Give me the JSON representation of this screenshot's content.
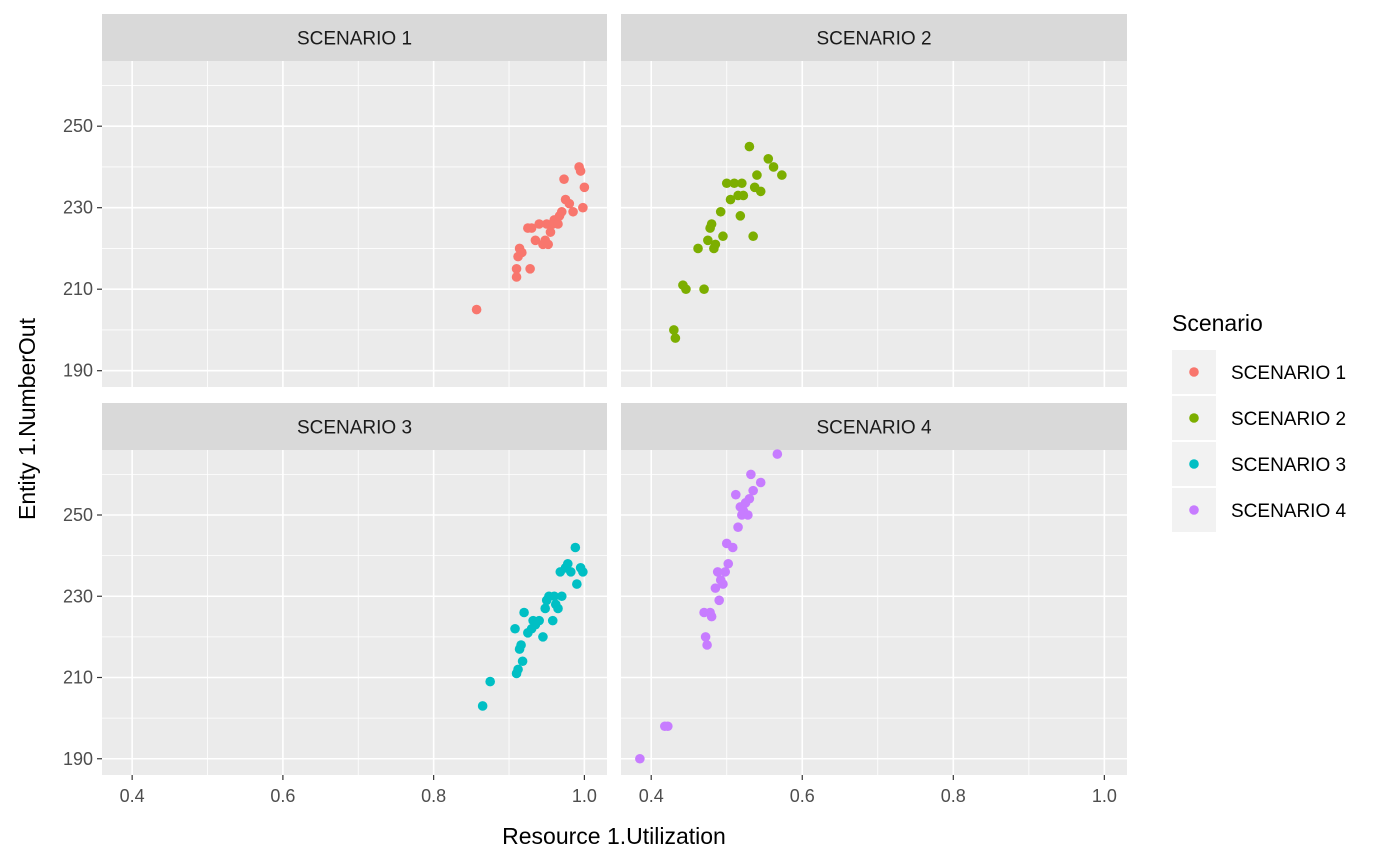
{
  "chart_data": {
    "type": "scatter",
    "facet": "wrap",
    "xlabel": "Resource 1.Utilization",
    "ylabel": "Entity 1.NumberOut",
    "xlim": [
      0.36,
      1.03
    ],
    "ylim": [
      186,
      266
    ],
    "x_ticks": [
      0.4,
      0.6,
      0.8,
      1.0
    ],
    "x_tick_labels": [
      "0.4",
      "0.6",
      "0.8",
      "1.0"
    ],
    "y_ticks": [
      190,
      210,
      230,
      250
    ],
    "y_tick_labels": [
      "190",
      "210",
      "230",
      "250"
    ],
    "grid": true,
    "legend": {
      "title": "Scenario",
      "position": "right",
      "entries": [
        "SCENARIO 1",
        "SCENARIO 2",
        "SCENARIO 3",
        "SCENARIO 4"
      ]
    },
    "series": [
      {
        "name": "SCENARIO 1",
        "color": "#F8766D",
        "points": [
          [
            0.857,
            205
          ],
          [
            0.91,
            213
          ],
          [
            0.91,
            215
          ],
          [
            0.912,
            218
          ],
          [
            0.914,
            220
          ],
          [
            0.917,
            219
          ],
          [
            0.925,
            225
          ],
          [
            0.928,
            215
          ],
          [
            0.93,
            225
          ],
          [
            0.935,
            222
          ],
          [
            0.94,
            226
          ],
          [
            0.945,
            221
          ],
          [
            0.948,
            222
          ],
          [
            0.95,
            226
          ],
          [
            0.952,
            221
          ],
          [
            0.955,
            224
          ],
          [
            0.958,
            226
          ],
          [
            0.96,
            227
          ],
          [
            0.965,
            226
          ],
          [
            0.967,
            228
          ],
          [
            0.97,
            229
          ],
          [
            0.973,
            237
          ],
          [
            0.975,
            232
          ],
          [
            0.98,
            231
          ],
          [
            0.985,
            229
          ],
          [
            0.993,
            240
          ],
          [
            0.995,
            239
          ],
          [
            0.998,
            230
          ],
          [
            1.0,
            235
          ]
        ]
      },
      {
        "name": "SCENARIO 2",
        "color": "#7CAE00",
        "points": [
          [
            0.43,
            200
          ],
          [
            0.432,
            198
          ],
          [
            0.442,
            211
          ],
          [
            0.446,
            210
          ],
          [
            0.462,
            220
          ],
          [
            0.47,
            210
          ],
          [
            0.475,
            222
          ],
          [
            0.478,
            225
          ],
          [
            0.48,
            226
          ],
          [
            0.483,
            220
          ],
          [
            0.485,
            221
          ],
          [
            0.492,
            229
          ],
          [
            0.495,
            223
          ],
          [
            0.5,
            236
          ],
          [
            0.505,
            232
          ],
          [
            0.51,
            236
          ],
          [
            0.515,
            233
          ],
          [
            0.518,
            228
          ],
          [
            0.52,
            236
          ],
          [
            0.522,
            233
          ],
          [
            0.53,
            245
          ],
          [
            0.535,
            223
          ],
          [
            0.537,
            235
          ],
          [
            0.54,
            238
          ],
          [
            0.545,
            234
          ],
          [
            0.555,
            242
          ],
          [
            0.562,
            240
          ],
          [
            0.573,
            238
          ]
        ]
      },
      {
        "name": "SCENARIO 3",
        "color": "#00BFC4",
        "points": [
          [
            0.865,
            203
          ],
          [
            0.875,
            209
          ],
          [
            0.908,
            222
          ],
          [
            0.91,
            211
          ],
          [
            0.912,
            212
          ],
          [
            0.914,
            217
          ],
          [
            0.916,
            218
          ],
          [
            0.918,
            214
          ],
          [
            0.92,
            226
          ],
          [
            0.925,
            221
          ],
          [
            0.93,
            222
          ],
          [
            0.932,
            224
          ],
          [
            0.935,
            223
          ],
          [
            0.94,
            224
          ],
          [
            0.945,
            220
          ],
          [
            0.948,
            227
          ],
          [
            0.95,
            229
          ],
          [
            0.953,
            230
          ],
          [
            0.958,
            224
          ],
          [
            0.96,
            230
          ],
          [
            0.962,
            228
          ],
          [
            0.965,
            227
          ],
          [
            0.968,
            236
          ],
          [
            0.97,
            230
          ],
          [
            0.975,
            237
          ],
          [
            0.978,
            238
          ],
          [
            0.982,
            236
          ],
          [
            0.988,
            242
          ],
          [
            0.99,
            233
          ],
          [
            0.995,
            237
          ],
          [
            0.998,
            236
          ]
        ]
      },
      {
        "name": "SCENARIO 4",
        "color": "#C77CFF",
        "points": [
          [
            0.385,
            190
          ],
          [
            0.418,
            198
          ],
          [
            0.422,
            198
          ],
          [
            0.47,
            226
          ],
          [
            0.472,
            220
          ],
          [
            0.474,
            218
          ],
          [
            0.478,
            226
          ],
          [
            0.48,
            225
          ],
          [
            0.485,
            232
          ],
          [
            0.488,
            236
          ],
          [
            0.49,
            229
          ],
          [
            0.492,
            234
          ],
          [
            0.495,
            233
          ],
          [
            0.498,
            236
          ],
          [
            0.5,
            243
          ],
          [
            0.502,
            238
          ],
          [
            0.508,
            242
          ],
          [
            0.512,
            255
          ],
          [
            0.515,
            247
          ],
          [
            0.518,
            252
          ],
          [
            0.52,
            250
          ],
          [
            0.522,
            251
          ],
          [
            0.525,
            253
          ],
          [
            0.528,
            250
          ],
          [
            0.53,
            254
          ],
          [
            0.532,
            260
          ],
          [
            0.535,
            256
          ],
          [
            0.545,
            258
          ],
          [
            0.567,
            265
          ]
        ]
      }
    ]
  }
}
